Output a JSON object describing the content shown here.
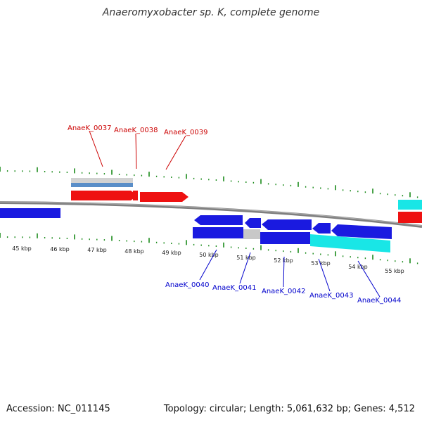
{
  "title": "Anaeromyxobacter sp. K, complete genome",
  "footer": {
    "accession": "Accession: NC_011145",
    "summary": "Topology: circular; Length: 5,061,632 bp; Genes: 4,512"
  },
  "colors": {
    "backbone": "#808080",
    "tick": "#1a8a1a",
    "forward_label": "#cc0000",
    "reverse_label": "#0000cc",
    "red": "#ee1111",
    "blue": "#1a1ae0",
    "cyan": "#19e6e6",
    "gray": "#c8c8c8",
    "steel": "#5a8ec8"
  },
  "scale_labels": [
    "45 kbp",
    "46 kbp",
    "47 kbp",
    "48 kbp",
    "49 kbp",
    "50 kbp",
    "51 kbp",
    "52 kbp",
    "53 kbp",
    "54 kbp",
    "55 kbp"
  ],
  "forward_genes": [
    "AnaeK_0037",
    "AnaeK_0038",
    "AnaeK_0039"
  ],
  "reverse_genes": [
    "AnaeK_0040",
    "AnaeK_0041",
    "AnaeK_0042",
    "AnaeK_0043",
    "AnaeK_0044"
  ]
}
